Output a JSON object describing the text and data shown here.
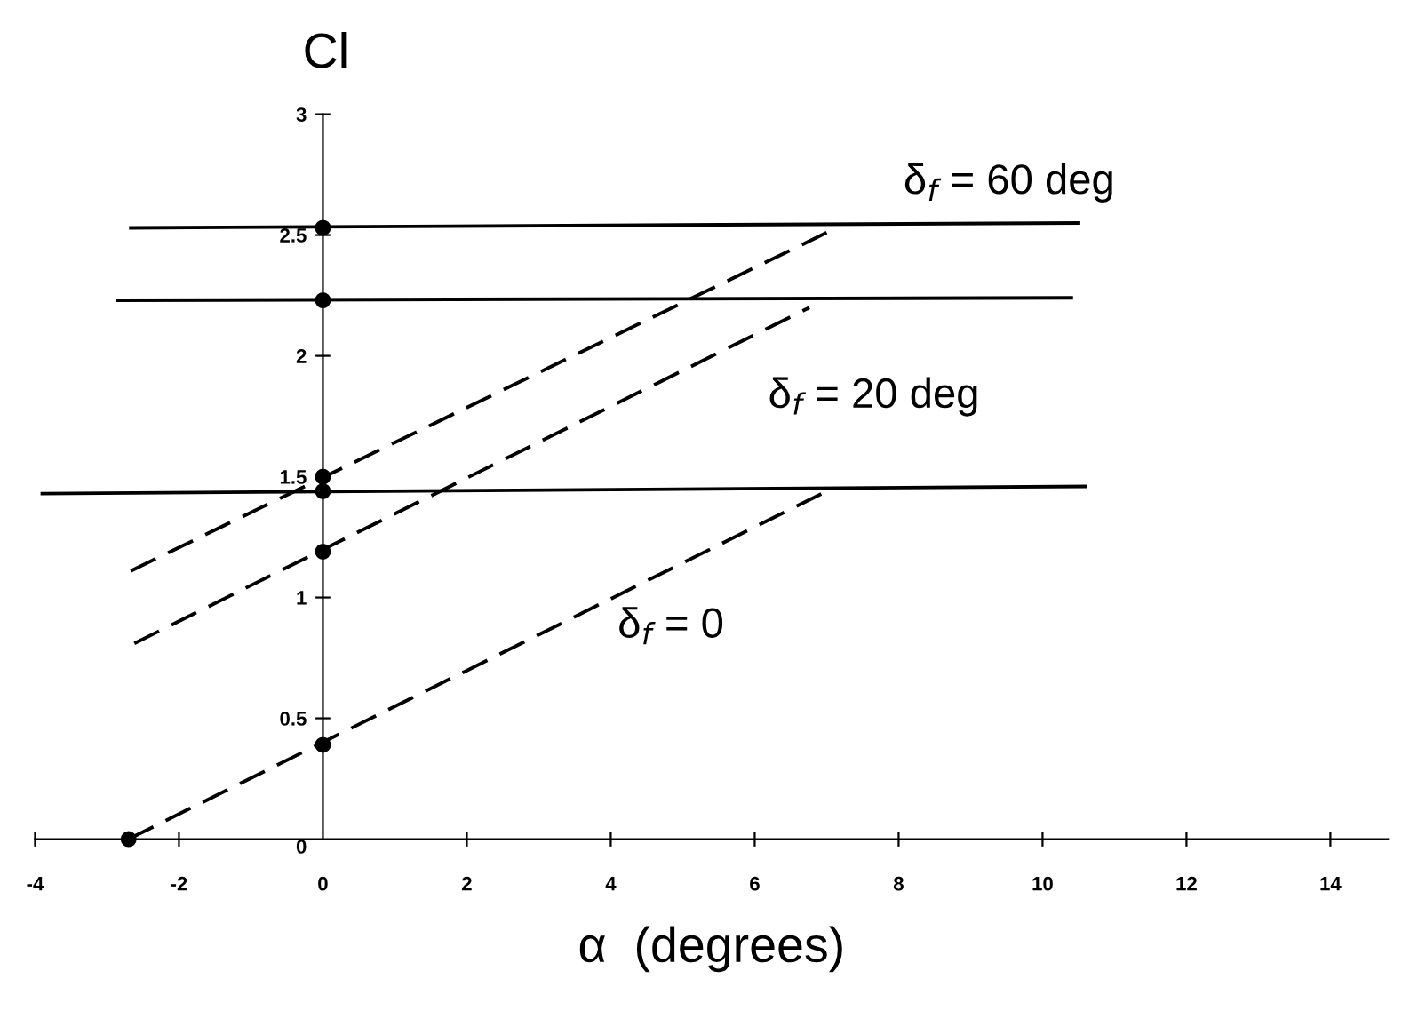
{
  "chart_data": {
    "type": "line",
    "xlabel": "α  (degrees)",
    "ylabel": "Cl",
    "xlim": [
      -4,
      14.8
    ],
    "ylim": [
      0,
      3
    ],
    "xticks": [
      -4,
      -2,
      0,
      2,
      4,
      6,
      8,
      10,
      12,
      14
    ],
    "yticks": [
      0,
      0.5,
      1,
      1.5,
      2,
      2.5,
      3
    ],
    "grid": false,
    "legend": false,
    "series": [
      {
        "color": "#000000",
        "line_style": "solid",
        "marker": "none",
        "x": [
          -2.67,
          10.5
        ],
        "values": [
          2.53,
          2.55
        ]
      },
      {
        "color": "#000000",
        "line_style": "solid",
        "marker": "none",
        "x": [
          -2.85,
          10.4
        ],
        "values": [
          2.23,
          2.24
        ]
      },
      {
        "color": "#000000",
        "line_style": "solid",
        "marker": "none",
        "x": [
          -3.9,
          10.6
        ],
        "values": [
          1.43,
          1.46
        ]
      },
      {
        "color": "#000000",
        "line_style": "dashed",
        "marker": "none",
        "x": [
          -2.67,
          7.0
        ],
        "values": [
          1.11,
          2.51
        ]
      },
      {
        "color": "#000000",
        "line_style": "dashed",
        "marker": "none",
        "x": [
          -2.62,
          6.76
        ],
        "values": [
          0.81,
          2.2
        ]
      },
      {
        "color": "#000000",
        "line_style": "dashed",
        "marker": "none",
        "x": [
          -2.7,
          7.0
        ],
        "values": [
          0,
          1.44
        ]
      },
      {
        "type": "scatter",
        "color": "#000000",
        "marker": "circle",
        "x": [
          0,
          0,
          0,
          0,
          0,
          0,
          -2.7
        ],
        "values": [
          2.53,
          2.23,
          1.5,
          1.44,
          1.19,
          0.39,
          0
        ]
      }
    ],
    "annotations": [
      "δ$_{f}$ = 60 deg",
      "δ$_{f}$ = 20 deg",
      "δ$_{f}$ = 0"
    ]
  }
}
